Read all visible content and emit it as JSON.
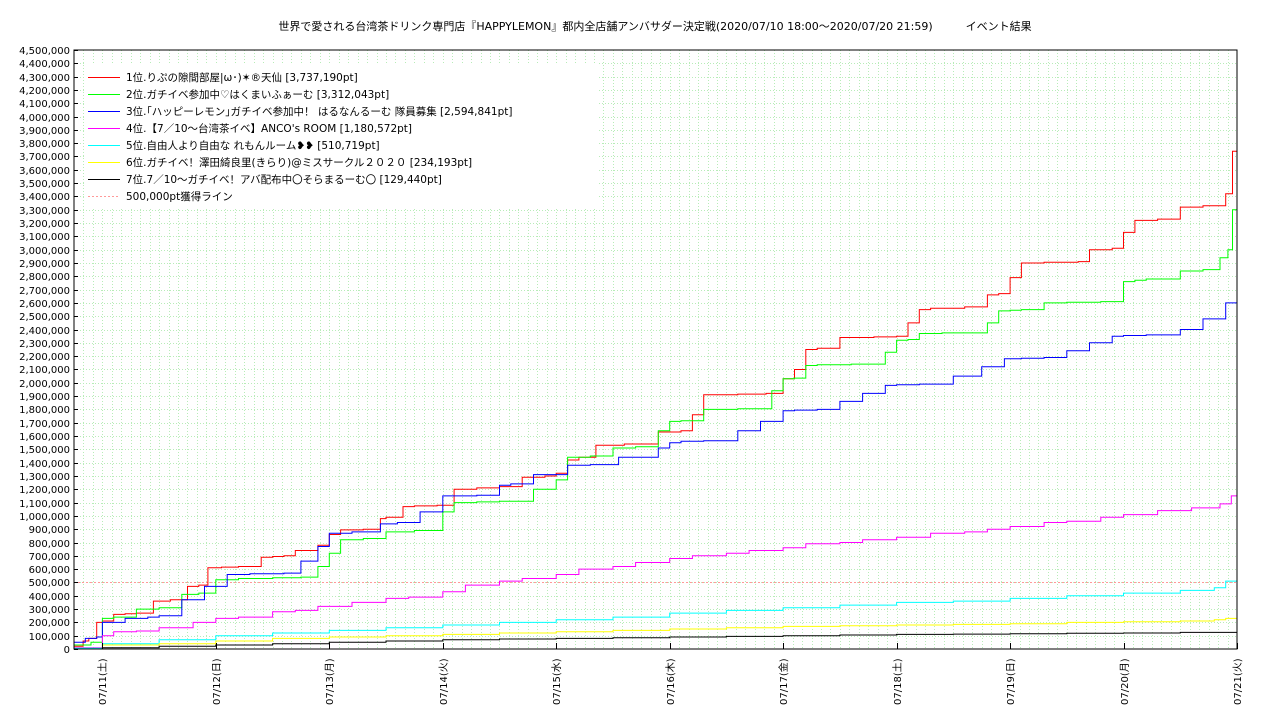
{
  "chart_data": {
    "type": "line",
    "title": "世界で愛される台湾茶ドリンク専門店『HAPPYLEMON』都内全店舗アンバサダー決定戦(2020/07/10 18:00～2020/07/20 21:59)　　　イベント結果",
    "xlabel": "",
    "ylabel": "",
    "ylim": [
      0,
      4500000
    ],
    "y_ticks": [
      0,
      100000,
      200000,
      300000,
      400000,
      500000,
      600000,
      700000,
      800000,
      900000,
      1000000,
      1100000,
      1200000,
      1300000,
      1400000,
      1500000,
      1600000,
      1700000,
      1800000,
      1900000,
      2000000,
      2100000,
      2200000,
      2300000,
      2400000,
      2500000,
      2600000,
      2700000,
      2800000,
      2900000,
      3000000,
      3100000,
      3200000,
      3300000,
      3400000,
      3500000,
      3600000,
      3700000,
      3800000,
      3900000,
      4000000,
      4100000,
      4200000,
      4300000,
      4400000,
      4500000
    ],
    "y_tick_labels": [
      "0",
      "100,000",
      "200,000",
      "300,000",
      "400,000",
      "500,000",
      "600,000",
      "700,000",
      "800,000",
      "900,000",
      "1,000,000",
      "1,100,000",
      "1,200,000",
      "1,300,000",
      "1,400,000",
      "1,500,000",
      "1,600,000",
      "1,700,000",
      "1,800,000",
      "1,900,000",
      "2,000,000",
      "2,100,000",
      "2,200,000",
      "2,300,000",
      "2,400,000",
      "2,500,000",
      "2,600,000",
      "2,700,000",
      "2,800,000",
      "2,900,000",
      "3,000,000",
      "3,100,000",
      "3,200,000",
      "3,300,000",
      "3,400,000",
      "3,500,000",
      "3,600,000",
      "3,700,000",
      "3,800,000",
      "3,900,000",
      "4,000,000",
      "4,100,000",
      "4,200,000",
      "4,300,000",
      "4,400,000",
      "4,500,000"
    ],
    "xlim": [
      -0.25,
      10.0
    ],
    "x_ticks": [
      0,
      1,
      2,
      3,
      4,
      5,
      6,
      7,
      8,
      9,
      10
    ],
    "x_tick_labels": [
      "07/11(土)",
      "07/12(日)",
      "07/13(月)",
      "07/14(火)",
      "07/15(水)",
      "07/16(木)",
      "07/17(金)",
      "07/18(土)",
      "07/19(日)",
      "07/20(月)",
      "07/21(火)"
    ],
    "grid": true,
    "legend_position": "top-left",
    "threshold": {
      "name": "500,000pt獲得ライン",
      "value": 500000,
      "color": "#ff9999"
    },
    "series": [
      {
        "name": "1位.りぷの隙間部屋|ω･)✶®天仙 [3,737,190pt]",
        "color": "#ff0000",
        "x": [
          -0.25,
          -0.17,
          -0.12,
          -0.05,
          0.0,
          0.1,
          0.2,
          0.3,
          0.45,
          0.6,
          0.75,
          0.85,
          0.93,
          1.05,
          1.2,
          1.4,
          1.5,
          1.6,
          1.7,
          1.9,
          2.0,
          2.1,
          2.3,
          2.45,
          2.5,
          2.65,
          2.75,
          2.95,
          3.1,
          3.3,
          3.5,
          3.7,
          3.9,
          4.0,
          4.1,
          4.2,
          4.35,
          4.6,
          4.9,
          5.1,
          5.2,
          5.3,
          5.6,
          5.85,
          6.0,
          6.1,
          6.2,
          6.3,
          6.5,
          6.8,
          7.0,
          7.1,
          7.2,
          7.3,
          7.6,
          7.8,
          7.9,
          8.0,
          8.1,
          8.3,
          8.6,
          8.7,
          8.9,
          9.0,
          9.1,
          9.3,
          9.5,
          9.7,
          9.9,
          9.96,
          10.0
        ],
        "y": [
          20000,
          60000,
          80000,
          200000,
          210000,
          260000,
          265000,
          270000,
          360000,
          370000,
          470000,
          480000,
          610000,
          615000,
          620000,
          690000,
          695000,
          700000,
          740000,
          780000,
          860000,
          895000,
          900000,
          980000,
          990000,
          1070000,
          1075000,
          1080000,
          1200000,
          1210000,
          1220000,
          1290000,
          1300000,
          1320000,
          1420000,
          1440000,
          1530000,
          1540000,
          1630000,
          1640000,
          1760000,
          1910000,
          1915000,
          1920000,
          2030000,
          2100000,
          2250000,
          2260000,
          2340000,
          2345000,
          2350000,
          2450000,
          2550000,
          2560000,
          2570000,
          2660000,
          2670000,
          2790000,
          2900000,
          2905000,
          2910000,
          3000000,
          3010000,
          3130000,
          3220000,
          3230000,
          3320000,
          3330000,
          3420000,
          3740000,
          3737190
        ]
      },
      {
        "name": "2位.ガチイベ参加中♡はくまいふぁーむ [3,312,043pt]",
        "color": "#00ff00",
        "x": [
          -0.25,
          -0.1,
          0.0,
          0.1,
          0.3,
          0.5,
          0.7,
          0.85,
          1.0,
          1.2,
          1.5,
          1.75,
          1.9,
          2.0,
          2.1,
          2.3,
          2.5,
          2.75,
          3.0,
          3.1,
          3.3,
          3.5,
          3.8,
          4.0,
          4.1,
          4.3,
          4.5,
          4.7,
          4.9,
          5.0,
          5.1,
          5.3,
          5.6,
          5.9,
          6.0,
          6.1,
          6.2,
          6.3,
          6.6,
          6.9,
          7.0,
          7.1,
          7.2,
          7.4,
          7.8,
          7.9,
          8.0,
          8.1,
          8.3,
          8.5,
          8.8,
          9.0,
          9.1,
          9.2,
          9.5,
          9.7,
          9.85,
          9.92,
          9.96,
          10.0
        ],
        "y": [
          30000,
          50000,
          230000,
          240000,
          300000,
          310000,
          410000,
          420000,
          520000,
          530000,
          535000,
          540000,
          620000,
          720000,
          820000,
          830000,
          880000,
          890000,
          1030000,
          1100000,
          1105000,
          1110000,
          1200000,
          1270000,
          1440000,
          1450000,
          1510000,
          1520000,
          1640000,
          1710000,
          1715000,
          1800000,
          1805000,
          1940000,
          2030000,
          2035000,
          2130000,
          2135000,
          2140000,
          2230000,
          2320000,
          2325000,
          2370000,
          2375000,
          2450000,
          2540000,
          2545000,
          2550000,
          2600000,
          2605000,
          2610000,
          2760000,
          2770000,
          2780000,
          2840000,
          2850000,
          2940000,
          3000000,
          3300000,
          3312043
        ]
      },
      {
        "name": "3位.｢ハッピーレモン｣ガチイベ参加中！ はるなんるーむ 隊員募集 [2,594,841pt]",
        "color": "#0000ff",
        "x": [
          -0.25,
          -0.15,
          -0.05,
          0.0,
          0.2,
          0.4,
          0.5,
          0.7,
          0.9,
          1.1,
          1.3,
          1.6,
          1.75,
          1.9,
          2.0,
          2.2,
          2.45,
          2.6,
          2.8,
          3.0,
          3.3,
          3.5,
          3.6,
          3.8,
          4.1,
          4.3,
          4.55,
          4.9,
          5.0,
          5.1,
          5.3,
          5.6,
          5.8,
          6.0,
          6.1,
          6.3,
          6.5,
          6.7,
          6.9,
          7.0,
          7.2,
          7.5,
          7.75,
          7.95,
          8.1,
          8.3,
          8.5,
          8.7,
          8.9,
          9.0,
          9.2,
          9.5,
          9.7,
          9.9,
          10.0
        ],
        "y": [
          50000,
          80000,
          90000,
          200000,
          230000,
          240000,
          250000,
          370000,
          470000,
          560000,
          565000,
          570000,
          660000,
          770000,
          870000,
          880000,
          940000,
          950000,
          1030000,
          1150000,
          1155000,
          1230000,
          1240000,
          1310000,
          1380000,
          1385000,
          1440000,
          1510000,
          1550000,
          1560000,
          1565000,
          1640000,
          1710000,
          1790000,
          1795000,
          1800000,
          1860000,
          1920000,
          1980000,
          1985000,
          1990000,
          2050000,
          2120000,
          2180000,
          2185000,
          2190000,
          2240000,
          2300000,
          2350000,
          2355000,
          2360000,
          2400000,
          2480000,
          2600000,
          2594841
        ]
      },
      {
        "name": "4位.【7／10～台湾茶イベ】ANCO's ROOM [1,180,572pt]",
        "color": "#ff00ff",
        "x": [
          -0.25,
          0.0,
          0.1,
          0.3,
          0.5,
          0.8,
          1.0,
          1.2,
          1.5,
          1.7,
          1.9,
          2.2,
          2.5,
          2.7,
          3.0,
          3.2,
          3.5,
          3.7,
          4.0,
          4.2,
          4.5,
          4.7,
          5.0,
          5.2,
          5.5,
          5.7,
          6.0,
          6.2,
          6.5,
          6.7,
          7.0,
          7.3,
          7.6,
          7.8,
          8.0,
          8.3,
          8.5,
          8.8,
          9.0,
          9.3,
          9.6,
          9.85,
          9.95,
          10.0
        ],
        "y": [
          10000,
          100000,
          130000,
          135000,
          160000,
          200000,
          230000,
          240000,
          280000,
          290000,
          320000,
          350000,
          380000,
          390000,
          430000,
          480000,
          510000,
          530000,
          560000,
          600000,
          620000,
          650000,
          680000,
          700000,
          720000,
          740000,
          760000,
          790000,
          800000,
          820000,
          840000,
          870000,
          880000,
          900000,
          920000,
          950000,
          960000,
          990000,
          1010000,
          1040000,
          1060000,
          1090000,
          1150000,
          1180572
        ]
      },
      {
        "name": "5位.自由人より自由な れもんルーム❥❥ [510,719pt]",
        "color": "#00ffff",
        "x": [
          -0.25,
          0.0,
          0.5,
          1.0,
          1.5,
          2.0,
          2.5,
          3.0,
          3.5,
          4.0,
          4.5,
          5.0,
          5.5,
          6.0,
          6.5,
          7.0,
          7.5,
          8.0,
          8.5,
          9.0,
          9.5,
          9.8,
          9.9,
          10.0
        ],
        "y": [
          5000,
          40000,
          70000,
          100000,
          120000,
          140000,
          160000,
          180000,
          200000,
          220000,
          240000,
          270000,
          290000,
          310000,
          330000,
          350000,
          360000,
          380000,
          400000,
          420000,
          440000,
          460000,
          510000,
          510719
        ]
      },
      {
        "name": "6位.ガチイベ！澤田綺良里(きらり)@ミスサークル２０２０ [234,193pt]",
        "color": "#ffff00",
        "x": [
          -0.25,
          0.0,
          0.5,
          1.0,
          1.5,
          2.0,
          2.5,
          3.0,
          3.5,
          4.0,
          4.5,
          5.0,
          5.5,
          6.0,
          6.5,
          7.0,
          7.5,
          8.0,
          8.5,
          9.0,
          9.5,
          9.8,
          9.9,
          10.0
        ],
        "y": [
          0,
          30000,
          40000,
          60000,
          80000,
          90000,
          100000,
          110000,
          120000,
          130000,
          140000,
          150000,
          160000,
          170000,
          175000,
          180000,
          185000,
          190000,
          200000,
          205000,
          210000,
          220000,
          230000,
          234193
        ]
      },
      {
        "name": "7位.7／10～ガチイベ！アバ配布中〇そらまるーむ〇 [129,440pt]",
        "color": "#000000",
        "x": [
          -0.25,
          0.0,
          0.5,
          1.0,
          1.5,
          2.0,
          2.5,
          3.0,
          3.5,
          4.0,
          4.5,
          5.0,
          5.5,
          6.0,
          6.5,
          7.0,
          7.5,
          8.0,
          8.5,
          9.0,
          9.5,
          10.0
        ],
        "y": [
          0,
          10000,
          20000,
          30000,
          40000,
          50000,
          60000,
          70000,
          75000,
          80000,
          85000,
          90000,
          95000,
          100000,
          105000,
          110000,
          112000,
          115000,
          118000,
          120000,
          125000,
          129440
        ]
      }
    ]
  }
}
